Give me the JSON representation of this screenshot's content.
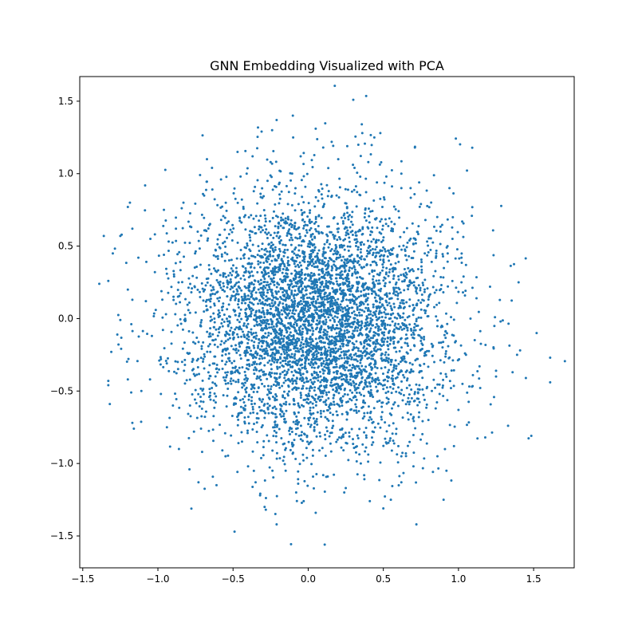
{
  "chart_data": {
    "type": "scatter",
    "title": "GNN Embedding Visualized with PCA",
    "xlabel": "",
    "ylabel": "",
    "xlim": [
      -1.52,
      1.77
    ],
    "ylim": [
      -1.72,
      1.67
    ],
    "xticks": [
      -1.5,
      -1.0,
      -0.5,
      0.0,
      0.5,
      1.0,
      1.5
    ],
    "xtick_labels": [
      "−1.5",
      "−1.0",
      "−0.5",
      "0.0",
      "0.5",
      "1.0",
      "1.5"
    ],
    "yticks": [
      -1.5,
      -1.0,
      -0.5,
      0.0,
      0.5,
      1.0,
      1.5
    ],
    "ytick_labels": [
      "−1.5",
      "−1.0",
      "−0.5",
      "0.0",
      "0.5",
      "1.0",
      "1.5"
    ],
    "grid": false,
    "legend": "none",
    "marker_color": "#1f77b4",
    "point_count_approx": 5000,
    "distribution": {
      "shape": "roughly circular cloud, densest near the origin",
      "center": [
        0.05,
        -0.02
      ],
      "std_x": 0.42,
      "std_y": 0.43
    },
    "series": [
      {
        "points": [
          [
            0.3,
            1.51
          ],
          [
            -0.21,
            1.37
          ],
          [
            0.05,
            1.31
          ],
          [
            -0.31,
            1.29
          ],
          [
            -0.24,
            1.3
          ],
          [
            0.36,
            1.28
          ],
          [
            0.48,
            1.28
          ],
          [
            0.44,
            1.25
          ],
          [
            -0.1,
            1.25
          ],
          [
            0.1,
            1.18
          ],
          [
            0.71,
            1.18
          ],
          [
            -0.47,
            1.15
          ],
          [
            -0.37,
            1.12
          ],
          [
            0.26,
            1.19
          ],
          [
            -0.64,
            1.04
          ],
          [
            -0.19,
            1.02
          ],
          [
            -0.58,
            0.96
          ],
          [
            0.62,
            1.0
          ],
          [
            0.94,
            0.9
          ],
          [
            -0.83,
            0.8
          ],
          [
            -0.96,
            0.75
          ],
          [
            -1.2,
            0.77
          ],
          [
            -1.36,
            0.57
          ],
          [
            -1.25,
            0.57
          ],
          [
            -1.17,
            0.62
          ],
          [
            -1.13,
            0.42
          ],
          [
            -1.05,
            0.55
          ],
          [
            -1.33,
            0.26
          ],
          [
            -1.39,
            0.24
          ],
          [
            -1.3,
            0.45
          ],
          [
            -1.2,
            0.2
          ],
          [
            -1.17,
            0.13
          ],
          [
            -1.25,
            -0.01
          ],
          [
            -1.27,
            -0.11
          ],
          [
            -1.31,
            -0.23
          ],
          [
            -1.33,
            -0.43
          ],
          [
            -1.33,
            -0.46
          ],
          [
            -1.32,
            -0.59
          ],
          [
            -1.2,
            -0.42
          ],
          [
            -1.17,
            -0.72
          ],
          [
            -1.16,
            -0.76
          ],
          [
            -1.11,
            -0.5
          ],
          [
            -0.98,
            -0.52
          ],
          [
            -0.94,
            -0.75
          ],
          [
            -0.86,
            -0.9
          ],
          [
            -0.79,
            -1.04
          ],
          [
            -0.73,
            -1.13
          ],
          [
            -0.61,
            -1.15
          ],
          [
            -0.49,
            -1.47
          ],
          [
            -0.35,
            -1.13
          ],
          [
            -0.32,
            -1.22
          ],
          [
            -0.29,
            -1.3
          ],
          [
            -0.21,
            -1.42
          ],
          [
            -0.08,
            -1.2
          ],
          [
            -0.03,
            -1.26
          ],
          [
            0.05,
            -1.34
          ],
          [
            0.11,
            -1.56
          ],
          [
            0.24,
            -1.2
          ],
          [
            0.25,
            -1.17
          ],
          [
            0.41,
            -1.26
          ],
          [
            0.5,
            -1.31
          ],
          [
            0.55,
            -1.25
          ],
          [
            0.62,
            -1.13
          ],
          [
            0.72,
            -1.42
          ],
          [
            0.65,
            -0.93
          ],
          [
            0.86,
            -0.95
          ],
          [
            0.92,
            -1.05
          ],
          [
            0.97,
            -0.88
          ],
          [
            1.0,
            -0.63
          ],
          [
            1.09,
            -0.47
          ],
          [
            1.14,
            -0.33
          ],
          [
            1.25,
            -0.36
          ],
          [
            1.25,
            -0.4
          ],
          [
            1.33,
            -0.74
          ],
          [
            1.36,
            -0.37
          ],
          [
            1.41,
            -0.22
          ],
          [
            1.39,
            -0.25
          ],
          [
            1.28,
            -0.02
          ],
          [
            1.52,
            -0.1
          ],
          [
            1.61,
            -0.27
          ],
          [
            1.61,
            -0.44
          ],
          [
            1.4,
            0.25
          ],
          [
            1.21,
            0.22
          ],
          [
            1.12,
            0.14
          ],
          [
            1.05,
            0.37
          ],
          [
            1.02,
            0.42
          ],
          [
            0.96,
            0.55
          ],
          [
            0.88,
            0.6
          ],
          [
            0.78,
            0.68
          ],
          [
            0.75,
            0.79
          ],
          [
            0.62,
            0.9
          ],
          [
            0.52,
            0.98
          ],
          [
            0.4,
            1.08
          ],
          [
            0.2,
            1.1
          ],
          [
            -0.05,
            1.12
          ],
          [
            -0.25,
            1.08
          ],
          [
            -0.45,
            0.98
          ],
          [
            -0.7,
            0.86
          ],
          [
            -0.88,
            0.62
          ],
          [
            -0.96,
            0.44
          ],
          [
            -1.02,
            0.32
          ],
          [
            -1.08,
            0.12
          ],
          [
            -1.04,
            -0.12
          ],
          [
            -0.98,
            -0.28
          ],
          [
            -0.9,
            -0.6
          ],
          [
            -0.76,
            -0.78
          ],
          [
            -0.55,
            -0.95
          ],
          [
            -0.4,
            -1.02
          ],
          [
            -0.15,
            -1.05
          ],
          [
            0.1,
            -1.08
          ],
          [
            0.35,
            -1.0
          ],
          [
            0.6,
            -0.88
          ],
          [
            0.8,
            -0.7
          ],
          [
            0.95,
            -0.48
          ],
          [
            1.05,
            -0.25
          ],
          [
            1.08,
            0.0
          ],
          [
            1.02,
            0.25
          ]
        ]
      }
    ]
  }
}
